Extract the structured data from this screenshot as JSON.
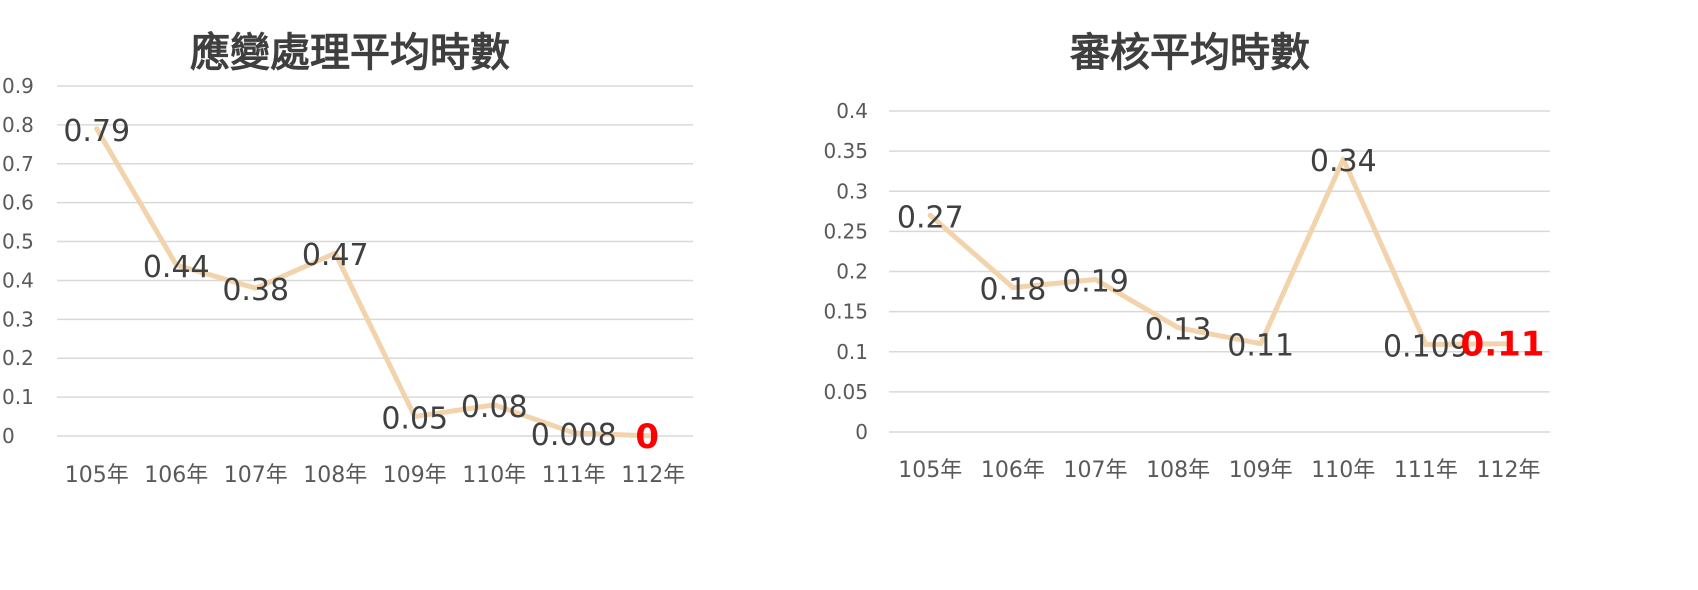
{
  "chart_data": [
    {
      "type": "line",
      "title": "應變處理平均時數",
      "categories": [
        "105年",
        "106年",
        "107年",
        "108年",
        "109年",
        "110年",
        "111年",
        "112年"
      ],
      "values": [
        0.79,
        0.44,
        0.38,
        0.47,
        0.05,
        0.08,
        0.008,
        0
      ],
      "data_labels": [
        "0.79",
        "0.44",
        "0.38",
        "0.47",
        "0.05",
        "0.08",
        "0.008",
        "0"
      ],
      "highlight_index": 7,
      "yticks": [
        "0",
        "0.1",
        "0.2",
        "0.3",
        "0.4",
        "0.5",
        "0.6",
        "0.7",
        "0.8",
        "0.9"
      ],
      "ylim": [
        0,
        0.9
      ],
      "grid": true,
      "legend": "none",
      "colors": {
        "line": "#f2d3ac",
        "highlight": "#ff0000",
        "grid": "#d9d9d9"
      }
    },
    {
      "type": "line",
      "title": "審核平均時數",
      "categories": [
        "105年",
        "106年",
        "107年",
        "108年",
        "109年",
        "110年",
        "111年",
        "112年"
      ],
      "values": [
        0.27,
        0.18,
        0.19,
        0.13,
        0.11,
        0.34,
        0.109,
        0.11
      ],
      "data_labels": [
        "0.27",
        "0.18",
        "0.19",
        "0.13",
        "0.11",
        "0.34",
        "0.109",
        "0.11"
      ],
      "highlight_index": 7,
      "yticks": [
        "0",
        "0.05",
        "0.1",
        "0.15",
        "0.2",
        "0.25",
        "0.3",
        "0.35",
        "0.4"
      ],
      "ylim": [
        0,
        0.4
      ],
      "grid": true,
      "legend": "none",
      "colors": {
        "line": "#f2d3ac",
        "highlight": "#ff0000",
        "grid": "#d9d9d9"
      }
    }
  ]
}
